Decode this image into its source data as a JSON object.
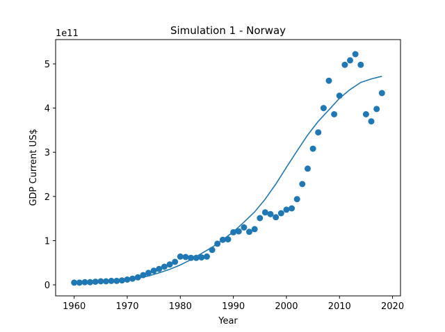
{
  "chart_data": {
    "type": "scatter",
    "title": "Simulation 1 - Norway",
    "xlabel": "Year",
    "ylabel": "GDP Current US$",
    "y_offset_label": "1e11",
    "xlim": [
      1956.5,
      2021.5
    ],
    "ylim": [
      -0.25,
      5.55
    ],
    "x_ticks": [
      1960,
      1970,
      1980,
      1990,
      2000,
      2010,
      2020
    ],
    "x_tick_labels": [
      "1960",
      "1970",
      "1980",
      "1990",
      "2000",
      "2010",
      "2020"
    ],
    "y_ticks": [
      0,
      1,
      2,
      3,
      4,
      5
    ],
    "y_tick_labels": [
      "0",
      "1",
      "2",
      "3",
      "4",
      "5"
    ],
    "grid": false,
    "color": "#1f77b4",
    "series": [
      {
        "type": "scatter",
        "x": [
          1960,
          1961,
          1962,
          1963,
          1964,
          1965,
          1966,
          1967,
          1968,
          1969,
          1970,
          1971,
          1972,
          1973,
          1974,
          1975,
          1976,
          1977,
          1978,
          1979,
          1980,
          1981,
          1982,
          1983,
          1984,
          1985,
          1986,
          1987,
          1988,
          1989,
          1990,
          1991,
          1992,
          1993,
          1994,
          1995,
          1996,
          1997,
          1998,
          1999,
          2000,
          2001,
          2002,
          2003,
          2004,
          2005,
          2006,
          2007,
          2008,
          2009,
          2010,
          2011,
          2012,
          2013,
          2014,
          2015,
          2016,
          2017,
          2018
        ],
        "y": [
          0.05,
          0.05,
          0.06,
          0.06,
          0.07,
          0.08,
          0.08,
          0.09,
          0.09,
          0.1,
          0.12,
          0.14,
          0.17,
          0.22,
          0.27,
          0.32,
          0.36,
          0.41,
          0.46,
          0.52,
          0.64,
          0.63,
          0.61,
          0.61,
          0.62,
          0.64,
          0.79,
          0.93,
          1.02,
          1.03,
          1.19,
          1.21,
          1.3,
          1.2,
          1.26,
          1.51,
          1.64,
          1.6,
          1.53,
          1.62,
          1.7,
          1.73,
          1.94,
          2.28,
          2.63,
          3.08,
          3.45,
          4.0,
          4.62,
          3.86,
          4.28,
          4.98,
          5.08,
          5.22,
          4.98,
          3.86,
          3.7,
          3.98,
          4.34
        ]
      },
      {
        "type": "line",
        "x": [
          1960,
          1962,
          1964,
          1966,
          1968,
          1970,
          1972,
          1974,
          1976,
          1978,
          1980,
          1982,
          1984,
          1986,
          1988,
          1990,
          1992,
          1994,
          1996,
          1998,
          2000,
          2002,
          2004,
          2006,
          2008,
          2010,
          2012,
          2014,
          2016,
          2018
        ],
        "y": [
          0.03,
          0.04,
          0.05,
          0.07,
          0.09,
          0.11,
          0.15,
          0.2,
          0.27,
          0.35,
          0.45,
          0.57,
          0.71,
          0.85,
          1.02,
          1.2,
          1.42,
          1.65,
          1.94,
          2.28,
          2.66,
          3.03,
          3.39,
          3.7,
          3.96,
          4.22,
          4.42,
          4.58,
          4.66,
          4.72
        ]
      }
    ]
  }
}
